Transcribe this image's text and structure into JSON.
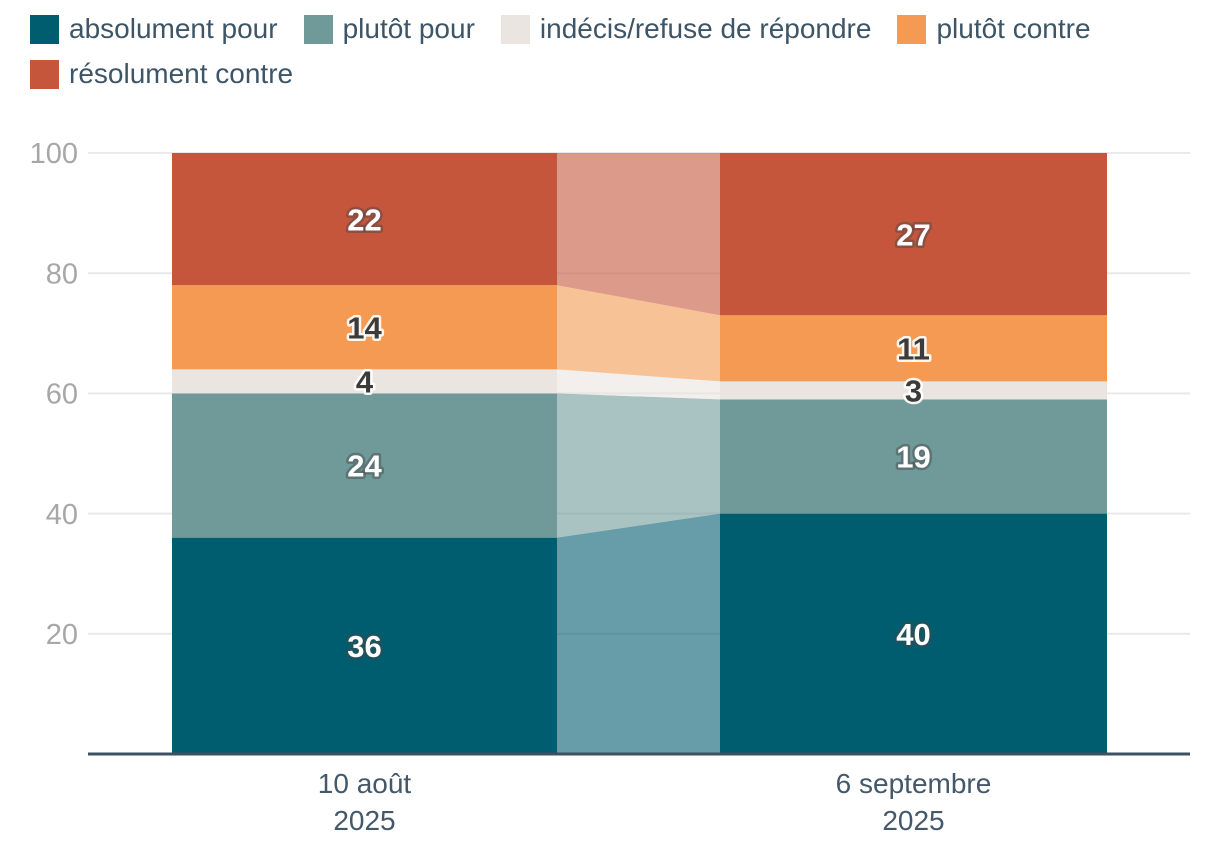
{
  "chart_data": {
    "type": "bar",
    "variant": "stacked-columns-with-flow",
    "stacked": true,
    "categories": [
      "10 août 2025",
      "6 septembre 2025"
    ],
    "category_label_lines": [
      [
        "10 août",
        "2025"
      ],
      [
        "6 septembre",
        "2025"
      ]
    ],
    "series": [
      {
        "name": "absolument pour",
        "color": "#005C6F",
        "label_color": "#FFFFFF",
        "values": [
          36,
          40
        ]
      },
      {
        "name": "plutôt pour",
        "color": "#6F9A99",
        "label_color": "#FFFFFF",
        "values": [
          24,
          19
        ]
      },
      {
        "name": "indécis/refuse de répondre",
        "color": "#EAE5E0",
        "label_color": "#3B3B3B",
        "values": [
          4,
          3
        ]
      },
      {
        "name": "plutôt contre",
        "color": "#F49A52",
        "label_color": "#3B3B3B",
        "values": [
          14,
          11
        ]
      },
      {
        "name": "résolument contre",
        "color": "#C5563C",
        "label_color": "#FFFFFF",
        "values": [
          22,
          27
        ]
      }
    ],
    "ylim": [
      0,
      100
    ],
    "yticks": [
      20,
      40,
      60,
      80,
      100
    ],
    "grid": true,
    "legend_position": "top-left",
    "flow_opacity": 0.6,
    "axis_colors": {
      "gridline": "#e9e9e9",
      "baseline": "#3e5160",
      "tick_text": "#a7a7a7",
      "category_text": "#44586a",
      "legend_text": "#3d5566"
    }
  }
}
